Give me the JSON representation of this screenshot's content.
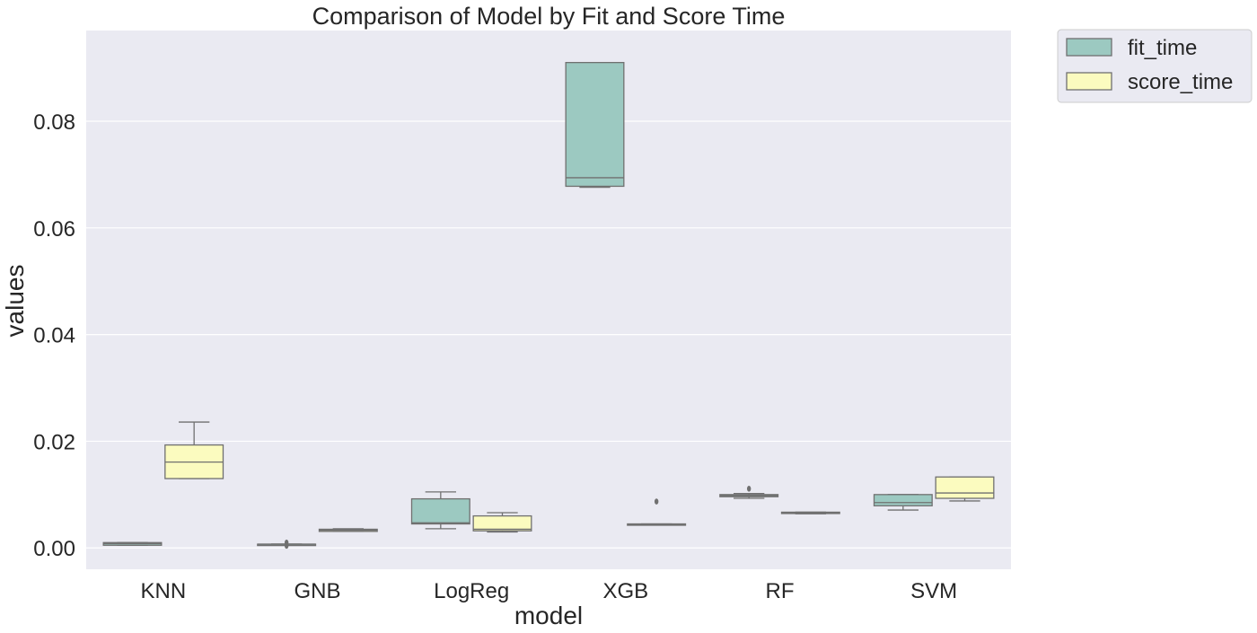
{
  "chart_data": {
    "type": "box",
    "title": "Comparison of Model by Fit and Score Time",
    "xlabel": "model",
    "ylabel": "values",
    "ylim": [
      -0.004,
      0.097
    ],
    "yticks": [
      0.0,
      0.02,
      0.04,
      0.06,
      0.08
    ],
    "ytick_labels": [
      "0.00",
      "0.02",
      "0.04",
      "0.06",
      "0.08"
    ],
    "grid": true,
    "legend_position": "outside-top-right",
    "categories": [
      "KNN",
      "GNB",
      "LogReg",
      "XGB",
      "RF",
      "SVM"
    ],
    "series": [
      {
        "name": "fit_time",
        "color": "#9cc9c1",
        "boxes": [
          {
            "whislo": 0.0005,
            "q1": 0.0005,
            "med": 0.0008,
            "q3": 0.001,
            "whishi": 0.001,
            "fliers": []
          },
          {
            "whislo": 0.0007,
            "q1": 0.0007,
            "med": 0.0007,
            "q3": 0.0007,
            "whishi": 0.0007,
            "fliers": [
              0.0004,
              0.001
            ]
          },
          {
            "whislo": 0.0036,
            "q1": 0.0045,
            "med": 0.0047,
            "q3": 0.0092,
            "whishi": 0.0105,
            "fliers": []
          },
          {
            "whislo": 0.0676,
            "q1": 0.0678,
            "med": 0.0694,
            "q3": 0.091,
            "whishi": 0.091,
            "fliers": []
          },
          {
            "whislo": 0.0093,
            "q1": 0.0096,
            "med": 0.0098,
            "q3": 0.01,
            "whishi": 0.0102,
            "fliers": [
              0.0111
            ]
          },
          {
            "whislo": 0.0071,
            "q1": 0.0079,
            "med": 0.0085,
            "q3": 0.01,
            "whishi": 0.01,
            "fliers": []
          }
        ]
      },
      {
        "name": "score_time",
        "color": "#fbfbbf",
        "boxes": [
          {
            "whislo": 0.013,
            "q1": 0.013,
            "med": 0.0161,
            "q3": 0.0193,
            "whishi": 0.0236,
            "fliers": []
          },
          {
            "whislo": 0.0031,
            "q1": 0.0031,
            "med": 0.0033,
            "q3": 0.0035,
            "whishi": 0.0036,
            "fliers": []
          },
          {
            "whislo": 0.003,
            "q1": 0.0032,
            "med": 0.0035,
            "q3": 0.006,
            "whishi": 0.0066,
            "fliers": []
          },
          {
            "whislo": 0.0043,
            "q1": 0.0043,
            "med": 0.0044,
            "q3": 0.0045,
            "whishi": 0.0045,
            "fliers": [
              0.0087
            ]
          },
          {
            "whislo": 0.0064,
            "q1": 0.0065,
            "med": 0.0066,
            "q3": 0.0067,
            "whishi": 0.0067,
            "fliers": []
          },
          {
            "whislo": 0.0088,
            "q1": 0.0093,
            "med": 0.0103,
            "q3": 0.0133,
            "whishi": 0.0133,
            "fliers": []
          }
        ]
      }
    ]
  }
}
